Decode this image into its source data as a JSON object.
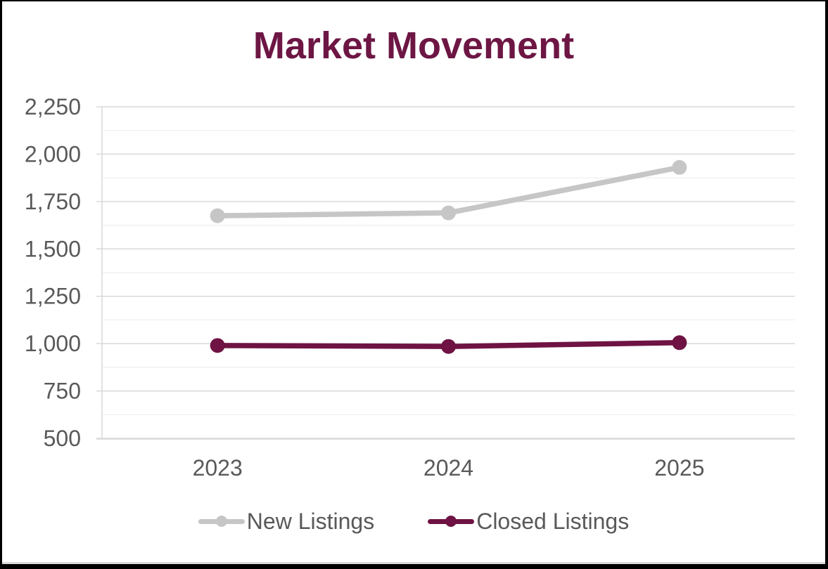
{
  "window": {
    "background": "#FFFFFF",
    "frame_color": "#000000"
  },
  "chart_data": {
    "type": "line",
    "title": "Market Movement",
    "categories": [
      "2023",
      "2024",
      "2025"
    ],
    "series": [
      {
        "name": "New Listings",
        "values": [
          1675,
          1690,
          1930
        ],
        "color": "#C6C6C6"
      },
      {
        "name": "Closed Listings",
        "values": [
          990,
          985,
          1005
        ],
        "color": "#6E1343"
      }
    ],
    "xlabel": "",
    "ylabel": "",
    "ylim": [
      500,
      2250
    ],
    "y_major_step": 250,
    "y_minor_step": 125,
    "y_tick_labels": [
      "500",
      "750",
      "1,000",
      "1,250",
      "1,500",
      "1,750",
      "2,000",
      "2,250"
    ],
    "grid": "horizontal, major + minor, no vertical gridlines",
    "legend_position": "bottom-center",
    "marker": "circle",
    "colors": {
      "title": "#6D1644",
      "axis_text": "#595959",
      "grid_major": "#D9D9D9",
      "grid_minor": "#F2F2F2",
      "axis_line": "#D9D9D9"
    }
  }
}
